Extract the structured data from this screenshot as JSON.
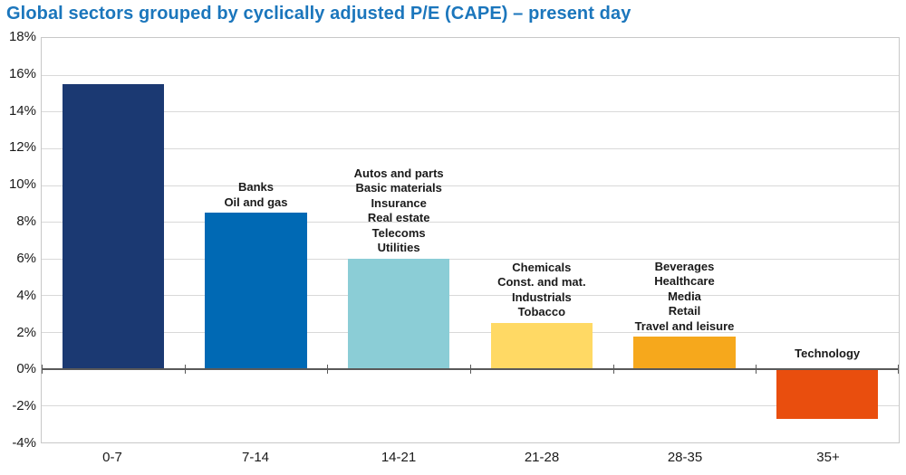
{
  "title": "Global sectors grouped by cyclically adjusted P/E (CAPE) – present day",
  "colors": {
    "title": "#1b76bc",
    "gridline": "#d9d9d9",
    "frame": "#c8c8c8",
    "zero_line": "#595959",
    "axis_text": "#1a1a1a"
  },
  "chart_data": {
    "type": "bar",
    "title": "Global sectors grouped by cyclically adjusted P/E (CAPE) – present day",
    "xlabel": "",
    "ylabel": "",
    "categories": [
      "0-7",
      "7-14",
      "14-21",
      "21-28",
      "28-35",
      "35+"
    ],
    "values": [
      15.5,
      8.5,
      6.0,
      2.5,
      1.75,
      -2.7
    ],
    "bar_colors": [
      "#1b3972",
      "#0069b4",
      "#8bcdd6",
      "#ffd964",
      "#f6a81c",
      "#e94e0e"
    ],
    "bar_labels": [
      [],
      [
        "Banks",
        "Oil and gas"
      ],
      [
        "Autos and parts",
        "Basic materials",
        "Insurance",
        "Real estate",
        "Telecoms",
        "Utilities"
      ],
      [
        "Chemicals",
        "Const. and mat.",
        "Industrials",
        "Tobacco"
      ],
      [
        "Beverages",
        "Healthcare",
        "Media",
        "Retail",
        "Travel and leisure"
      ],
      [
        "Technology"
      ]
    ],
    "ylim": [
      -4,
      18
    ],
    "yticks": [
      18,
      16,
      14,
      12,
      10,
      8,
      6,
      4,
      2,
      0,
      -2,
      -4
    ],
    "ytick_suffix": "%",
    "grid": true,
    "legend": false
  }
}
